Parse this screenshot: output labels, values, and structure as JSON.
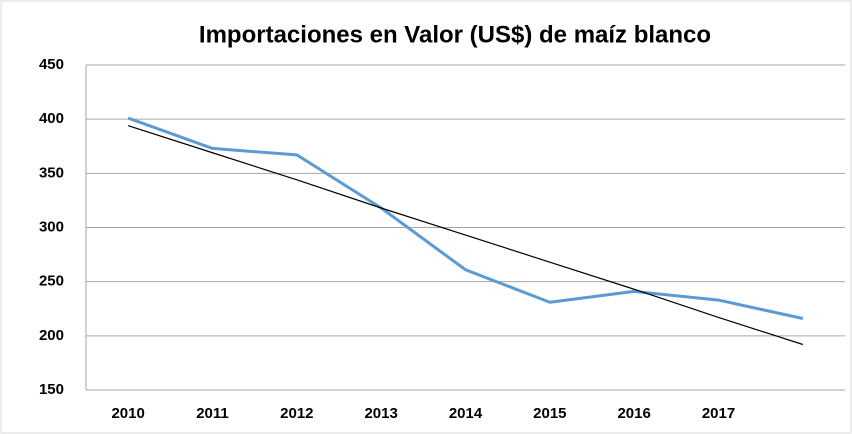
{
  "chart_data": {
    "type": "line",
    "title": "Importaciones en Valor (US$) de maíz blanco",
    "categories": [
      "2010",
      "2011",
      "2012",
      "2013",
      "2014",
      "2015",
      "2016",
      "2017",
      null
    ],
    "series": [
      {
        "color": "#5b9bd5",
        "values": [
          401,
          373,
          367,
          318,
          261,
          231,
          241,
          233,
          216
        ]
      },
      {
        "color": "#000000",
        "values": [
          394,
          369,
          344,
          318,
          293,
          268,
          243,
          217,
          192
        ]
      }
    ],
    "ylim": [
      150,
      450
    ],
    "yticks": [
      150,
      200,
      250,
      300,
      350,
      400,
      450
    ],
    "grid": true
  }
}
